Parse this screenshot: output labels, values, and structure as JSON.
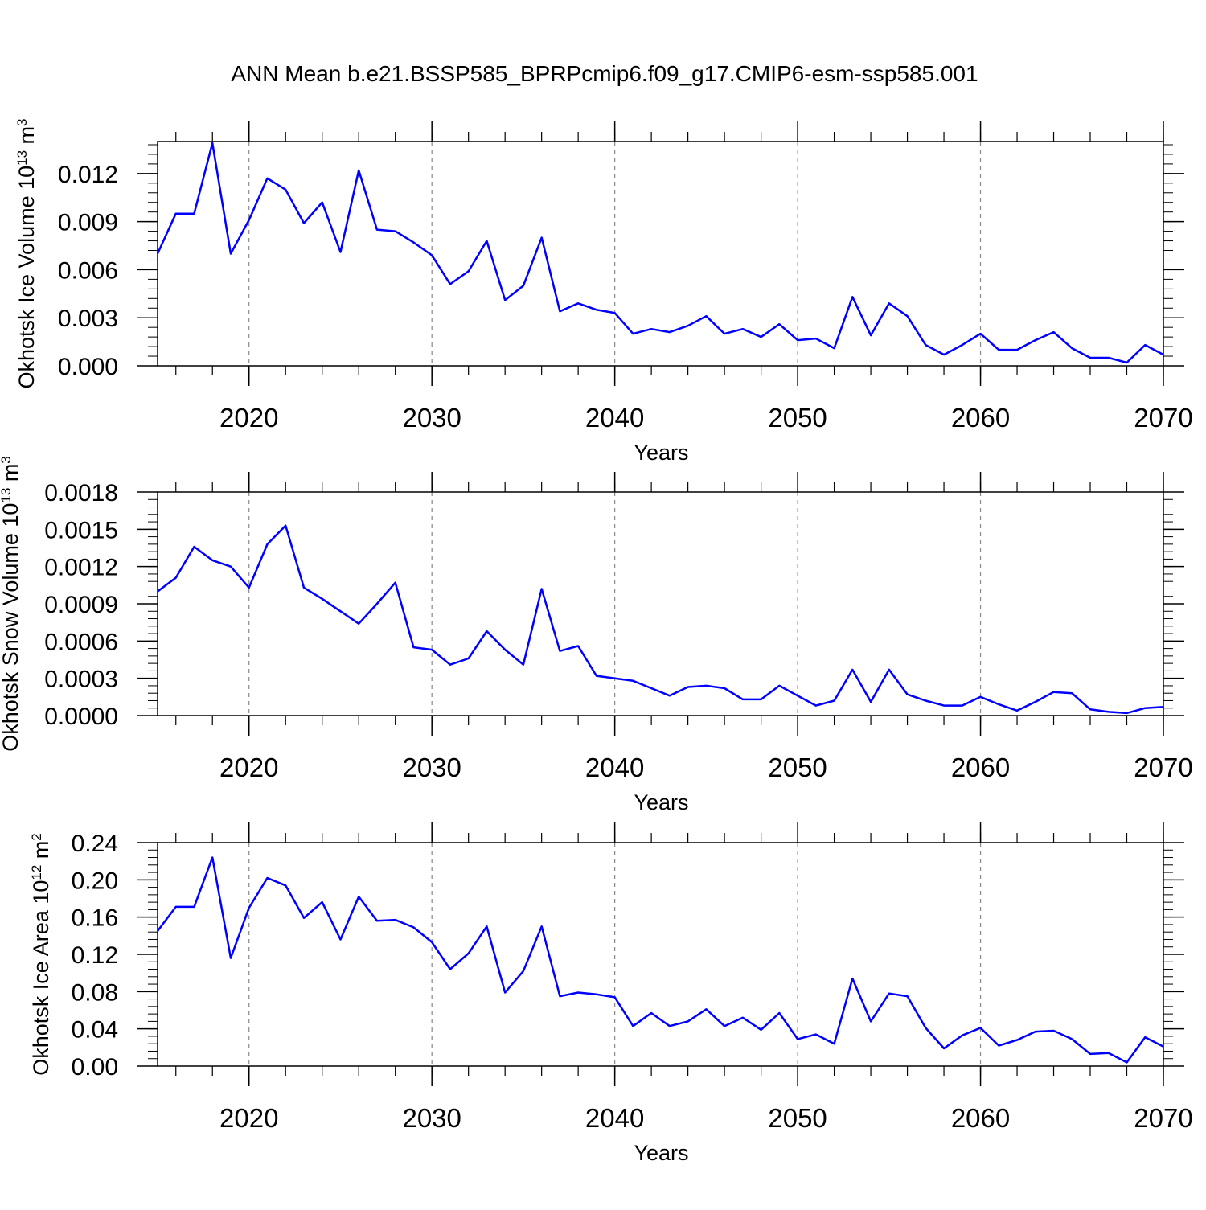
{
  "title": "ANN Mean b.e21.BSSP585_BPRPcmip6.f09_g17.CMIP6-esm-ssp585.001",
  "chart_data": [
    {
      "type": "line",
      "title": "",
      "ylabel": {
        "text": "Okhotsk Ice Volume 10",
        "exp": "13",
        "unit": " m",
        "unit_exp": "3"
      },
      "xlabel": "Years",
      "xlim": [
        2015,
        2070
      ],
      "ylim": [
        0,
        0.014
      ],
      "yticks": [
        "0.000",
        "0.003",
        "0.006",
        "0.009",
        "0.012"
      ],
      "xticks": [
        "2020",
        "2030",
        "2040",
        "2050",
        "2060",
        "2070"
      ],
      "grid": "vertical-dashed",
      "line_color": "#0000ff",
      "x": [
        2015,
        2016,
        2017,
        2018,
        2019,
        2020,
        2021,
        2022,
        2023,
        2024,
        2025,
        2026,
        2027,
        2028,
        2029,
        2030,
        2031,
        2032,
        2033,
        2034,
        2035,
        2036,
        2037,
        2038,
        2039,
        2040,
        2041,
        2042,
        2043,
        2044,
        2045,
        2046,
        2047,
        2048,
        2049,
        2050,
        2051,
        2052,
        2053,
        2054,
        2055,
        2056,
        2057,
        2058,
        2059,
        2060,
        2061,
        2062,
        2063,
        2064,
        2065,
        2066,
        2067,
        2068,
        2069,
        2070
      ],
      "values": [
        0.007,
        0.0095,
        0.0095,
        0.0139,
        0.007,
        0.0091,
        0.0117,
        0.011,
        0.0089,
        0.0102,
        0.0071,
        0.0122,
        0.0085,
        0.0084,
        0.0077,
        0.0069,
        0.0051,
        0.0059,
        0.0078,
        0.0041,
        0.005,
        0.008,
        0.0034,
        0.0039,
        0.0035,
        0.0033,
        0.002,
        0.0023,
        0.0021,
        0.0025,
        0.0031,
        0.002,
        0.0023,
        0.0018,
        0.0026,
        0.0016,
        0.0017,
        0.0011,
        0.0043,
        0.0019,
        0.0039,
        0.0031,
        0.0013,
        0.0007,
        0.0013,
        0.002,
        0.001,
        0.001,
        0.0016,
        0.0021,
        0.0011,
        0.0005,
        0.0005,
        0.0002,
        0.0013,
        0.0007
      ]
    },
    {
      "type": "line",
      "title": "",
      "ylabel": {
        "text": "Okhotsk Snow Volume 10",
        "exp": "13",
        "unit": " m",
        "unit_exp": "3"
      },
      "xlabel": "Years",
      "xlim": [
        2015,
        2070
      ],
      "ylim": [
        0,
        0.0018
      ],
      "yticks": [
        "0.0000",
        "0.0003",
        "0.0006",
        "0.0009",
        "0.0012",
        "0.0015",
        "0.0018"
      ],
      "xticks": [
        "2020",
        "2030",
        "2040",
        "2050",
        "2060",
        "2070"
      ],
      "grid": "vertical-dashed",
      "line_color": "#0000ff",
      "x": [
        2015,
        2016,
        2017,
        2018,
        2019,
        2020,
        2021,
        2022,
        2023,
        2024,
        2025,
        2026,
        2027,
        2028,
        2029,
        2030,
        2031,
        2032,
        2033,
        2034,
        2035,
        2036,
        2037,
        2038,
        2039,
        2040,
        2041,
        2042,
        2043,
        2044,
        2045,
        2046,
        2047,
        2048,
        2049,
        2050,
        2051,
        2052,
        2053,
        2054,
        2055,
        2056,
        2057,
        2058,
        2059,
        2060,
        2061,
        2062,
        2063,
        2064,
        2065,
        2066,
        2067,
        2068,
        2069,
        2070
      ],
      "values": [
        0.001,
        0.00111,
        0.00136,
        0.00125,
        0.0012,
        0.00103,
        0.00138,
        0.00153,
        0.00103,
        0.00094,
        0.00084,
        0.00074,
        0.0009,
        0.00107,
        0.00055,
        0.00053,
        0.00041,
        0.00046,
        0.00068,
        0.00053,
        0.00041,
        0.00102,
        0.00052,
        0.00056,
        0.00032,
        0.0003,
        0.00028,
        0.00022,
        0.00016,
        0.00023,
        0.00024,
        0.00022,
        0.00013,
        0.00013,
        0.00024,
        0.00016,
        8e-05,
        0.00012,
        0.00037,
        0.00011,
        0.00037,
        0.00017,
        0.00012,
        8e-05,
        8e-05,
        0.00015,
        9e-05,
        4e-05,
        0.00011,
        0.00019,
        0.00018,
        5e-05,
        3e-05,
        2e-05,
        6e-05,
        7e-05
      ]
    },
    {
      "type": "line",
      "title": "",
      "ylabel": {
        "text": "Okhotsk Ice Area 10",
        "exp": "12",
        "unit": " m",
        "unit_exp": "2"
      },
      "xlabel": "Years",
      "xlim": [
        2015,
        2070
      ],
      "ylim": [
        0,
        0.24
      ],
      "yticks": [
        "0.00",
        "0.04",
        "0.08",
        "0.12",
        "0.16",
        "0.20",
        "0.24"
      ],
      "xticks": [
        "2020",
        "2030",
        "2040",
        "2050",
        "2060",
        "2070"
      ],
      "grid": "vertical-dashed",
      "line_color": "#0000ff",
      "x": [
        2015,
        2016,
        2017,
        2018,
        2019,
        2020,
        2021,
        2022,
        2023,
        2024,
        2025,
        2026,
        2027,
        2028,
        2029,
        2030,
        2031,
        2032,
        2033,
        2034,
        2035,
        2036,
        2037,
        2038,
        2039,
        2040,
        2041,
        2042,
        2043,
        2044,
        2045,
        2046,
        2047,
        2048,
        2049,
        2050,
        2051,
        2052,
        2053,
        2054,
        2055,
        2056,
        2057,
        2058,
        2059,
        2060,
        2061,
        2062,
        2063,
        2064,
        2065,
        2066,
        2067,
        2068,
        2069,
        2070
      ],
      "values": [
        0.145,
        0.171,
        0.171,
        0.224,
        0.116,
        0.17,
        0.202,
        0.194,
        0.159,
        0.176,
        0.136,
        0.182,
        0.156,
        0.157,
        0.149,
        0.133,
        0.104,
        0.121,
        0.15,
        0.079,
        0.102,
        0.15,
        0.075,
        0.079,
        0.077,
        0.074,
        0.043,
        0.057,
        0.043,
        0.048,
        0.061,
        0.043,
        0.052,
        0.039,
        0.057,
        0.029,
        0.034,
        0.024,
        0.094,
        0.048,
        0.078,
        0.075,
        0.041,
        0.019,
        0.033,
        0.041,
        0.022,
        0.028,
        0.037,
        0.038,
        0.029,
        0.013,
        0.014,
        0.004,
        0.031,
        0.021
      ]
    }
  ]
}
